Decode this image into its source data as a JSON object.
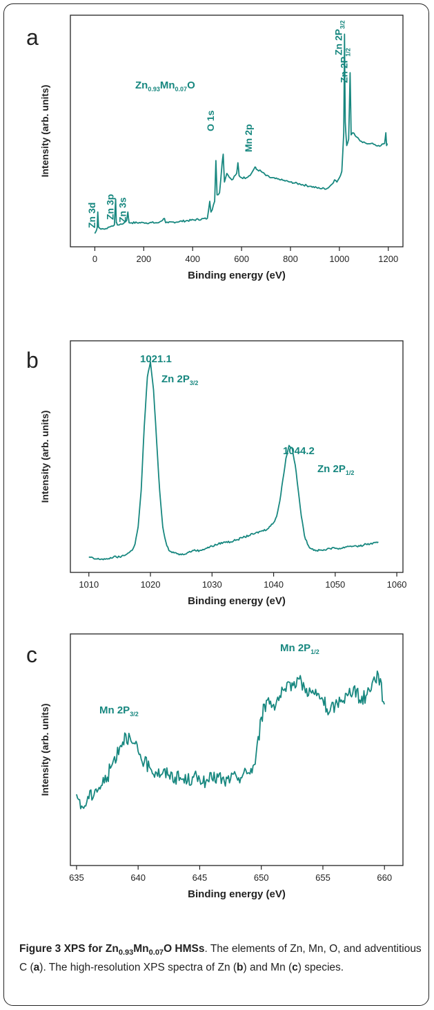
{
  "accent_color": "#17877f",
  "caption": {
    "title_prefix": "Figure 3 XPS for Zn",
    "title_s1": "0.93",
    "title_mid": "Mn",
    "title_s2": "0.07",
    "title_suffix": "O HMSs",
    "body_1": ". The elements of Zn, Mn, O, and adventitious C (",
    "ref_a": "a",
    "body_2": "). The high-resolution XPS spectra of Zn (",
    "ref_b": "b",
    "body_3": ") and Mn (",
    "ref_c": "c",
    "body_4": ") species."
  },
  "chart_data": [
    {
      "type": "line",
      "panel_label": "a",
      "xlabel": "Binding energy (eV)",
      "ylabel": "Intensity (arb. units)",
      "xlim": [
        -100,
        1260
      ],
      "ylim": [
        0,
        100
      ],
      "xticks": [
        0,
        200,
        400,
        600,
        800,
        1000,
        1200
      ],
      "y_tick_labels_shown": false,
      "compound": {
        "base1": "Zn",
        "sub1": "0.93",
        "base2": "Mn",
        "sub2": "0.07",
        "base3": "O"
      },
      "series": [
        {
          "x": [
            0,
            5,
            10,
            12,
            15,
            25,
            40,
            60,
            80,
            85,
            88,
            92,
            100,
            120,
            130,
            135,
            140,
            150,
            200,
            260,
            285,
            290,
            300,
            380,
            460,
            470,
            475,
            480,
            490,
            495,
            500,
            510,
            520,
            525,
            530,
            540,
            560,
            580,
            585,
            590,
            600,
            620,
            640,
            655,
            660,
            680,
            700,
            720,
            760,
            800,
            840,
            880,
            920,
            950,
            970,
            980,
            990,
            1000,
            1010,
            1018,
            1021,
            1024,
            1030,
            1038,
            1044,
            1048,
            1055,
            1070,
            1090,
            1110,
            1130,
            1150,
            1170,
            1185,
            1190,
            1193,
            1196
          ],
          "y": [
            3,
            4,
            6,
            13,
            6,
            5,
            5,
            6,
            7,
            19,
            8,
            7,
            7,
            8,
            9,
            13,
            8,
            8,
            8,
            8,
            10,
            8,
            8,
            9,
            10,
            18,
            13,
            14,
            18,
            37,
            21,
            22,
            35,
            40,
            27,
            31,
            28,
            31,
            36,
            30,
            29,
            29,
            31,
            34,
            33,
            32,
            30,
            29,
            28,
            27,
            26,
            25,
            24,
            24,
            26,
            28,
            27,
            29,
            32,
            50,
            96,
            55,
            44,
            47,
            78,
            49,
            50,
            48,
            46,
            45,
            45,
            44,
            44,
            45,
            50,
            44,
            45
          ]
        }
      ],
      "annotations": [
        {
          "text": "Zn 3d",
          "x": 10
        },
        {
          "text": "Zn 3p",
          "x": 85
        },
        {
          "text": "Zn 3s",
          "x": 135
        },
        {
          "text": "O 1s",
          "x": 495
        },
        {
          "text": "Mn 2p",
          "x": 650
        },
        {
          "text": "Zn 2P",
          "sub": "3/2",
          "x": 1021
        },
        {
          "text": "Zn 2P",
          "sub": "1/2",
          "x": 1044
        }
      ]
    },
    {
      "type": "line",
      "panel_label": "b",
      "xlabel": "Binding energy (eV)",
      "ylabel": "Intensity (arb. units)",
      "xlim": [
        1007,
        1061
      ],
      "ylim": [
        0,
        100
      ],
      "xticks": [
        1010,
        1020,
        1030,
        1040,
        1050,
        1060
      ],
      "y_tick_labels_shown": false,
      "series": [
        {
          "x": [
            1010,
            1011,
            1012,
            1013,
            1014,
            1015,
            1016,
            1017,
            1017.5,
            1018,
            1018.5,
            1019,
            1019.5,
            1020,
            1020.5,
            1021,
            1021.5,
            1022,
            1022.5,
            1023,
            1023.5,
            1024,
            1025,
            1026,
            1027,
            1028,
            1029,
            1030,
            1031,
            1032,
            1033,
            1034,
            1035,
            1036,
            1037,
            1038,
            1039,
            1040,
            1040.5,
            1041,
            1041.5,
            1042,
            1042.5,
            1043,
            1043.5,
            1044,
            1044.5,
            1045,
            1045.5,
            1046,
            1047,
            1048,
            1049,
            1050,
            1051,
            1052,
            1053,
            1054,
            1055,
            1056,
            1057
          ],
          "y": [
            4,
            3,
            3,
            3,
            4,
            4,
            5,
            7,
            10,
            18,
            35,
            65,
            88,
            95,
            82,
            58,
            35,
            18,
            11,
            7,
            6,
            6,
            5,
            6,
            7,
            7,
            8,
            9,
            10,
            11,
            11,
            12,
            13,
            14,
            15,
            16,
            17,
            20,
            23,
            30,
            40,
            50,
            56,
            55,
            47,
            35,
            23,
            14,
            10,
            8,
            7,
            7,
            8,
            8,
            8,
            9,
            9,
            9,
            10,
            10,
            11
          ]
        }
      ],
      "annotations": [
        {
          "text": "1021.1",
          "x": 1019.8
        },
        {
          "text": "Zn 2P",
          "sub": "3/2",
          "x": 1021
        },
        {
          "text": "1044.2",
          "x": 1042.6
        },
        {
          "text": "Zn 2P",
          "sub": "1/2",
          "x": 1044
        }
      ]
    },
    {
      "type": "line",
      "panel_label": "c",
      "xlabel": "Binding energy (eV)",
      "ylabel": "Intensity (arb. units)",
      "xlim": [
        634.5,
        661.5
      ],
      "ylim": [
        0,
        100
      ],
      "xticks": [
        635,
        640,
        645,
        650,
        655,
        660
      ],
      "y_tick_labels_shown": false,
      "series": [
        {
          "x": [
            635,
            635.5,
            636,
            636.5,
            637,
            637.5,
            638,
            638.5,
            639,
            639.5,
            640,
            640.5,
            641,
            641.5,
            642,
            642.5,
            643,
            643.5,
            644,
            644.5,
            645,
            645.5,
            646,
            646.5,
            647,
            647.5,
            648,
            648.5,
            649,
            649.5,
            650,
            650.5,
            651,
            651.5,
            652,
            652.5,
            653,
            653.5,
            654,
            654.5,
            655,
            655.5,
            656,
            656.5,
            657,
            657.5,
            658,
            658.5,
            659,
            659.5,
            660
          ],
          "y": [
            30,
            24,
            28,
            32,
            34,
            38,
            46,
            52,
            58,
            54,
            50,
            45,
            42,
            40,
            40,
            39,
            38,
            37,
            36,
            38,
            37,
            36,
            37,
            38,
            36,
            37,
            38,
            39,
            40,
            44,
            66,
            74,
            72,
            76,
            78,
            82,
            84,
            80,
            78,
            76,
            74,
            68,
            72,
            74,
            76,
            80,
            74,
            76,
            82,
            86,
            72
          ]
        }
      ],
      "annotations": [
        {
          "text": "Mn 2P",
          "sub": "3/2",
          "x": 639
        },
        {
          "text": "Mn 2P",
          "sub": "1/2",
          "x": 652.5
        }
      ]
    }
  ]
}
